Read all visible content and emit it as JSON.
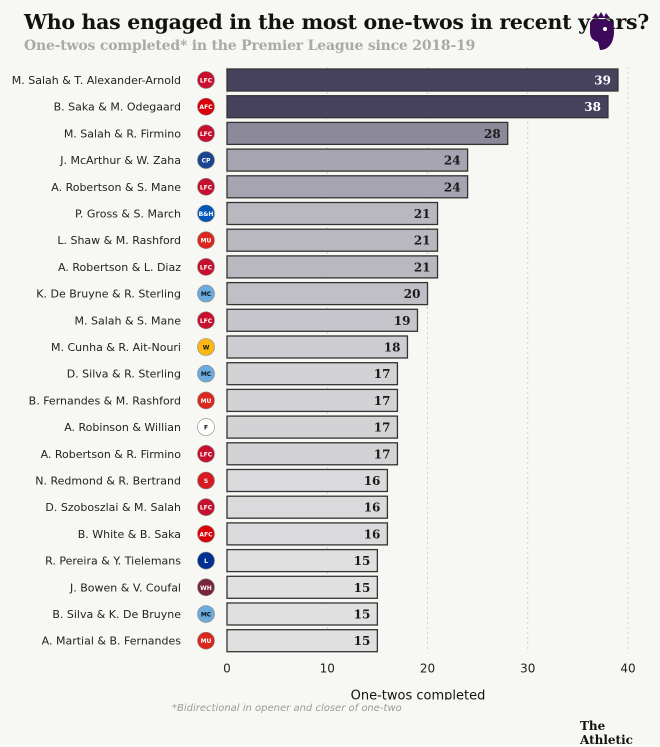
{
  "title": "Who has engaged in the most one-twos in recent years?",
  "subtitle": "One-twos completed* in the Premier League since 2018-19",
  "footnote": "*Bidirectional in opener and closer of one-two",
  "brand": "The Athletic",
  "logo": "premier-league-lion-icon",
  "chart_data": {
    "type": "bar",
    "orientation": "horizontal",
    "xlabel": "One-twos completed",
    "xlim": [
      0,
      40
    ],
    "xticks": [
      0,
      10,
      20,
      30,
      40
    ],
    "grid": true,
    "categories": [
      "M. Salah & T. Alexander-Arnold",
      "B. Saka & M. Odegaard",
      "M. Salah & R. Firmino",
      "J. McArthur & W. Zaha",
      "A. Robertson & S. Mane",
      "P. Gross & S. March",
      "L. Shaw & M. Rashford",
      "A. Robertson & L. Diaz",
      "K. De Bruyne & R. Sterling",
      "M. Salah & S. Mane",
      "M. Cunha & R. Ait-Nouri",
      "D. Silva & R. Sterling",
      "B. Fernandes & M. Rashford",
      "A. Robinson & Willian",
      "A. Robertson & R. Firmino",
      "N. Redmond & R. Bertrand",
      "D. Szoboszlai & M. Salah",
      "B. White & B. Saka",
      "R. Pereira & Y. Tielemans",
      "J. Bowen & V. Coufal",
      "B. Silva & K. De Bruyne",
      "A. Martial & B. Fernandes"
    ],
    "values": [
      39,
      38,
      28,
      24,
      24,
      21,
      21,
      21,
      20,
      19,
      18,
      17,
      17,
      17,
      17,
      16,
      16,
      16,
      15,
      15,
      15,
      15
    ],
    "clubs": [
      "liverpool",
      "arsenal",
      "liverpool",
      "crystal-palace",
      "liverpool",
      "brighton",
      "man-utd",
      "liverpool",
      "man-city",
      "liverpool",
      "wolves",
      "man-city",
      "man-utd",
      "fulham",
      "liverpool",
      "southampton",
      "liverpool",
      "arsenal",
      "leicester",
      "west-ham",
      "man-city",
      "man-utd"
    ]
  },
  "club_colors": {
    "liverpool": "#c8102e",
    "arsenal": "#db0007",
    "crystal-palace": "#1b458f",
    "brighton": "#0057b8",
    "man-utd": "#da291c",
    "man-city": "#6cabdd",
    "wolves": "#fdb913",
    "fulham": "#ffffff",
    "southampton": "#d71920",
    "leicester": "#003090",
    "west-ham": "#7a263a"
  }
}
